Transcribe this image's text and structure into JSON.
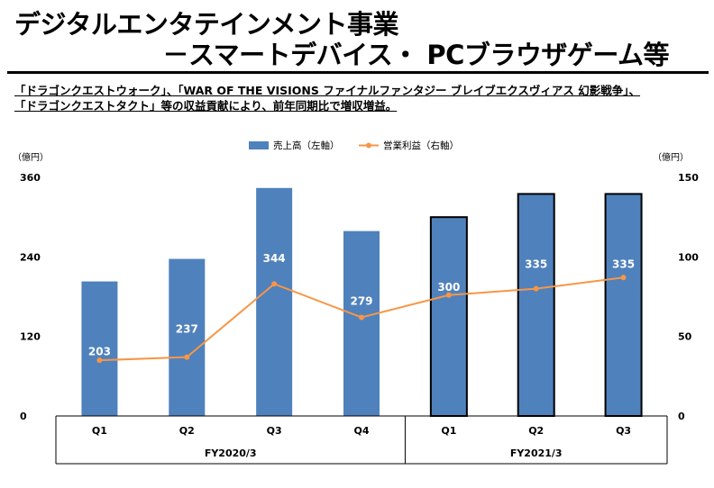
{
  "header": {
    "title_line1": "デジタルエンタテインメント事業",
    "title_line2": "－スマートデバイス・ PCブラウザゲーム等"
  },
  "summary": {
    "line1": "「ドラゴンクエストウォーク」、「WAR OF THE VISIONS ファイナルファンタジー ブレイブエクスヴィアス 幻影戦争」、",
    "line2": "「ドラゴンクエストタクト」等の収益貢献により、前年同期比で増収増益。"
  },
  "colors": {
    "bar_fill": "#4f81bd",
    "line_color": "#f79646",
    "axis": "#000000"
  },
  "chart_data": {
    "type": "bar",
    "categories": [
      "Q1",
      "Q2",
      "Q3",
      "Q4",
      "Q1",
      "Q2",
      "Q3"
    ],
    "groups": [
      {
        "label": "FY2020/3",
        "span": 4
      },
      {
        "label": "FY2021/3",
        "span": 3
      }
    ],
    "series": [
      {
        "name": "売上高（左軸）",
        "type": "bar",
        "axis": "left",
        "values": [
          203,
          237,
          344,
          279,
          300,
          335,
          335
        ],
        "data_labels": [
          "203",
          "237",
          "344",
          "279",
          "300",
          "335",
          "335"
        ],
        "outlined": [
          false,
          false,
          false,
          false,
          true,
          true,
          true
        ]
      },
      {
        "name": "営業利益（右軸）",
        "type": "line",
        "axis": "right",
        "values": [
          35,
          37,
          83,
          62,
          76,
          80,
          87
        ]
      }
    ],
    "y_left": {
      "unit": "（億円）",
      "ylim": [
        0,
        360
      ],
      "ticks": [
        "0",
        "120",
        "240",
        "360"
      ]
    },
    "y_right": {
      "unit": "（億円）",
      "ylim": [
        0,
        150
      ],
      "ticks": [
        "0",
        "50",
        "100",
        "150"
      ]
    }
  }
}
